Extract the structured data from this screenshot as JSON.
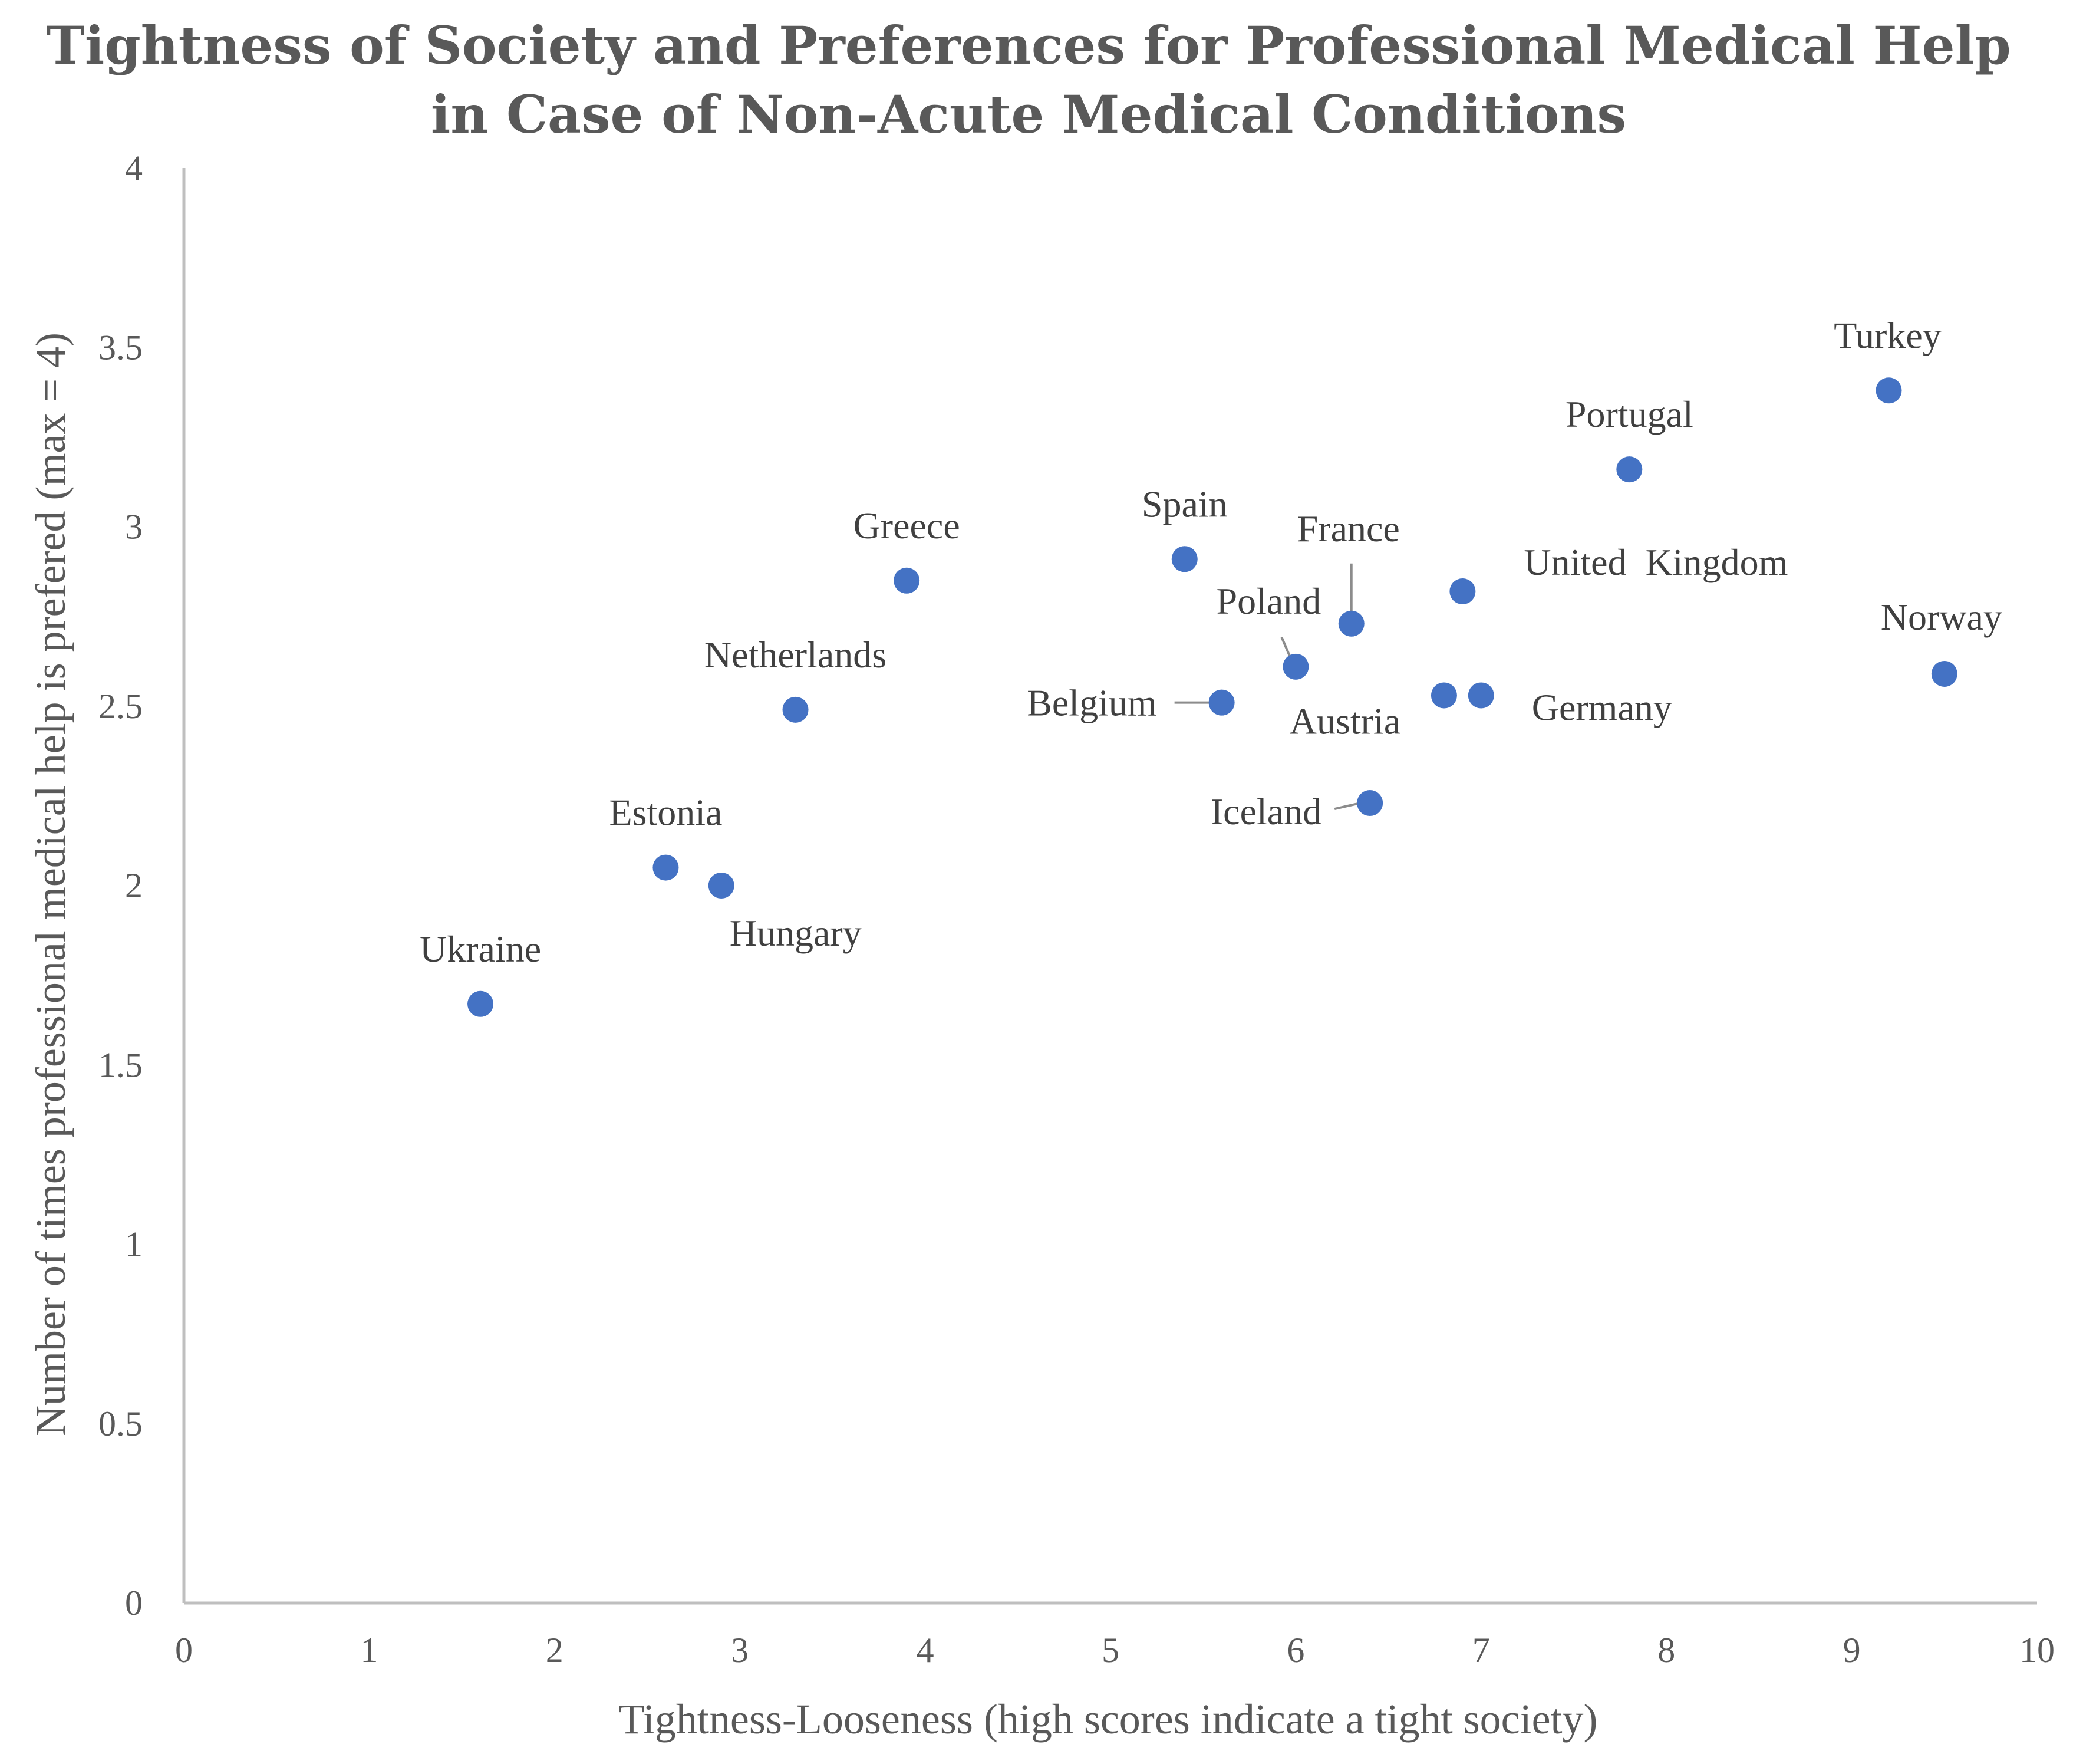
{
  "chart_data": {
    "type": "scatter",
    "title": [
      "Tightness of Society and Preferences for Professional Medical Help",
      "in Case of Non-Acute Medical Conditions"
    ],
    "xlabel": "Tightness-Looseness (high scores indicate a tight society)",
    "ylabel": "Number of times professional medical help is prefered (max = 4)",
    "xlim": [
      0,
      10
    ],
    "ylim": [
      0,
      4
    ],
    "x_ticks": [
      "0",
      "1",
      "2",
      "3",
      "4",
      "5",
      "6",
      "7",
      "8",
      "9",
      "10"
    ],
    "y_ticks": [
      "0",
      "0.5",
      "1",
      "1.5",
      "2",
      "2.5",
      "3",
      "3.5",
      "4"
    ],
    "grid": false,
    "marker_color": "#4472c4",
    "points": [
      {
        "label": "Ukraine",
        "x": 1.6,
        "y": 1.67
      },
      {
        "label": "Estonia",
        "x": 2.6,
        "y": 2.05
      },
      {
        "label": "Hungary",
        "x": 2.9,
        "y": 2.0
      },
      {
        "label": "Netherlands",
        "x": 3.3,
        "y": 2.49
      },
      {
        "label": "Greece",
        "x": 3.9,
        "y": 2.85
      },
      {
        "label": "Spain",
        "x": 5.4,
        "y": 2.91
      },
      {
        "label": "Belgium",
        "x": 5.6,
        "y": 2.51
      },
      {
        "label": "Poland",
        "x": 6.0,
        "y": 2.61
      },
      {
        "label": "France",
        "x": 6.3,
        "y": 2.73
      },
      {
        "label": "Iceland",
        "x": 6.4,
        "y": 2.23
      },
      {
        "label": "Austria",
        "x": 6.8,
        "y": 2.53
      },
      {
        "label": "Germany",
        "x": 7.0,
        "y": 2.53
      },
      {
        "label": "United  Kingdom",
        "x": 6.9,
        "y": 2.82
      },
      {
        "label": "Portugal",
        "x": 7.8,
        "y": 3.16
      },
      {
        "label": "Turkey",
        "x": 9.2,
        "y": 3.38
      },
      {
        "label": "Norway",
        "x": 9.5,
        "y": 2.59
      }
    ]
  }
}
